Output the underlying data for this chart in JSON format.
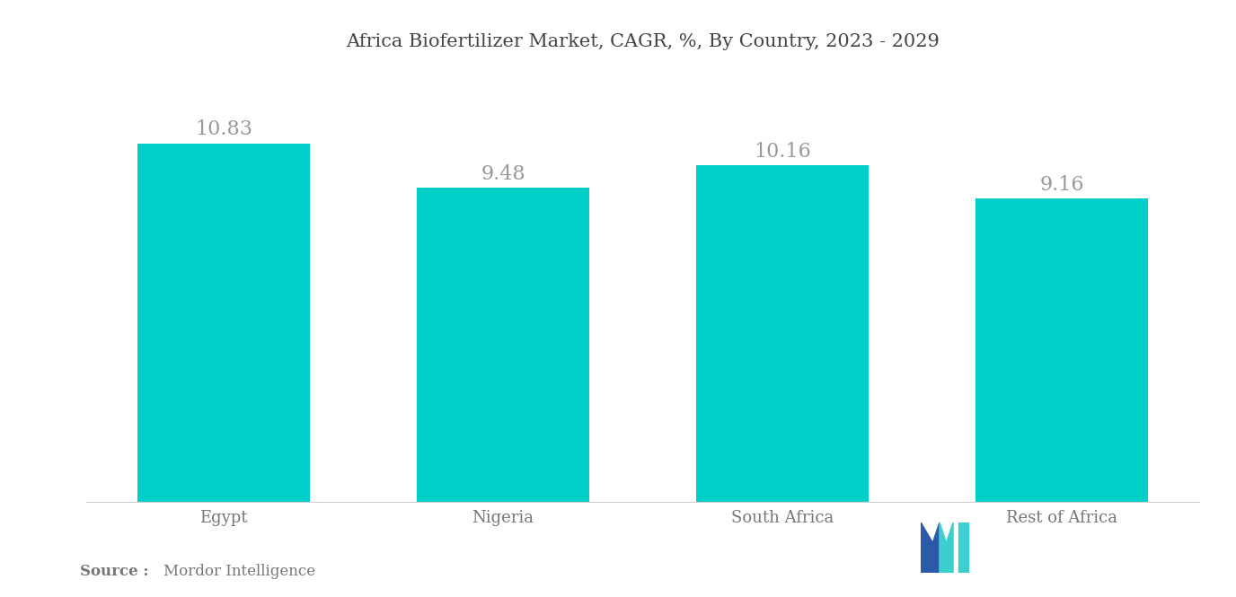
{
  "title": "Africa Biofertilizer Market, CAGR, %, By Country, 2023 - 2029",
  "categories": [
    "Egypt",
    "Nigeria",
    "South Africa",
    "Rest of Africa"
  ],
  "values": [
    10.83,
    9.48,
    10.16,
    9.16
  ],
  "bar_color": "#00CEC9",
  "value_color": "#999999",
  "title_color": "#444444",
  "background_color": "#ffffff",
  "ylim": [
    0,
    13
  ],
  "bar_width": 0.62,
  "source_bold": "Source :",
  "source_normal": "Mordor Intelligence",
  "value_fontsize": 16,
  "title_fontsize": 15,
  "label_fontsize": 13,
  "source_fontsize": 12
}
